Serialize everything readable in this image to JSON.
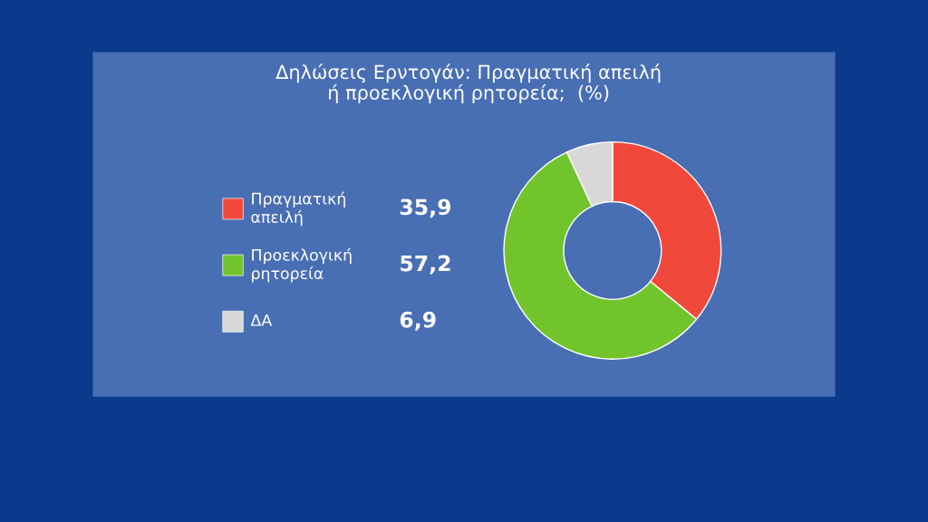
{
  "chart_data": {
    "type": "donut",
    "title": "Δηλώσεις Ερντογάν: Πραγματική απειλή\nή προεκλογική ρητορεία;  (%)",
    "categories": [
      "Πραγματική απειλή",
      "Προεκλογική ρητορεία",
      "ΔΑ"
    ],
    "values": [
      35.9,
      57.2,
      6.9
    ],
    "value_labels": [
      "35,9",
      "57,2",
      "6,9"
    ],
    "colors": [
      "#f0483a",
      "#72c42c",
      "#d8d8d8"
    ],
    "legend": "left"
  }
}
